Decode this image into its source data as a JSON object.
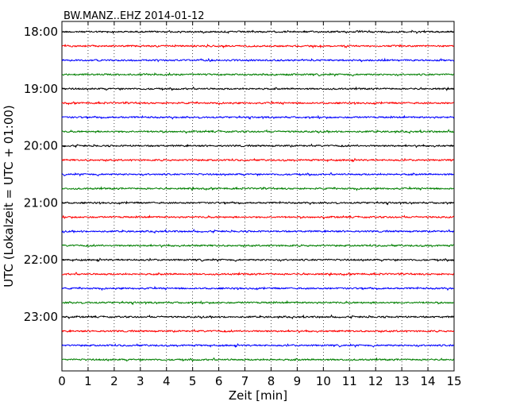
{
  "chart_data": {
    "type": "line",
    "title": "BW.MANZ..EHZ 2014-01-12",
    "xlabel": "Zeit  [min]",
    "ylabel": "UTC (Lokalzeit = UTC + 01:00)",
    "xlim": [
      0,
      15
    ],
    "x_ticks": [
      "0",
      "1",
      "2",
      "3",
      "4",
      "5",
      "6",
      "7",
      "8",
      "9",
      "10",
      "11",
      "12",
      "13",
      "14",
      "15"
    ],
    "y_tick_labels": [
      "18:00",
      "19:00",
      "20:00",
      "21:00",
      "22:00",
      "23:00"
    ],
    "y_tick_positions_hours": [
      18,
      19,
      20,
      21,
      22,
      23
    ],
    "trace_start_hours": [
      18.0,
      18.25,
      18.5,
      18.75,
      19.0,
      19.25,
      19.5,
      19.75,
      20.0,
      20.25,
      20.5,
      20.75,
      21.0,
      21.25,
      21.5,
      21.75,
      22.0,
      22.25,
      22.5,
      22.75,
      23.0,
      23.25,
      23.5,
      23.75
    ],
    "trace_interval_minutes": 15,
    "trace_color_cycle": [
      "#000000",
      "#ff0000",
      "#0000ff",
      "#007f00"
    ],
    "grid": "vertical dotted at each minute",
    "signal": "continuous low-amplitude seismic noise on every 15-minute trace"
  }
}
